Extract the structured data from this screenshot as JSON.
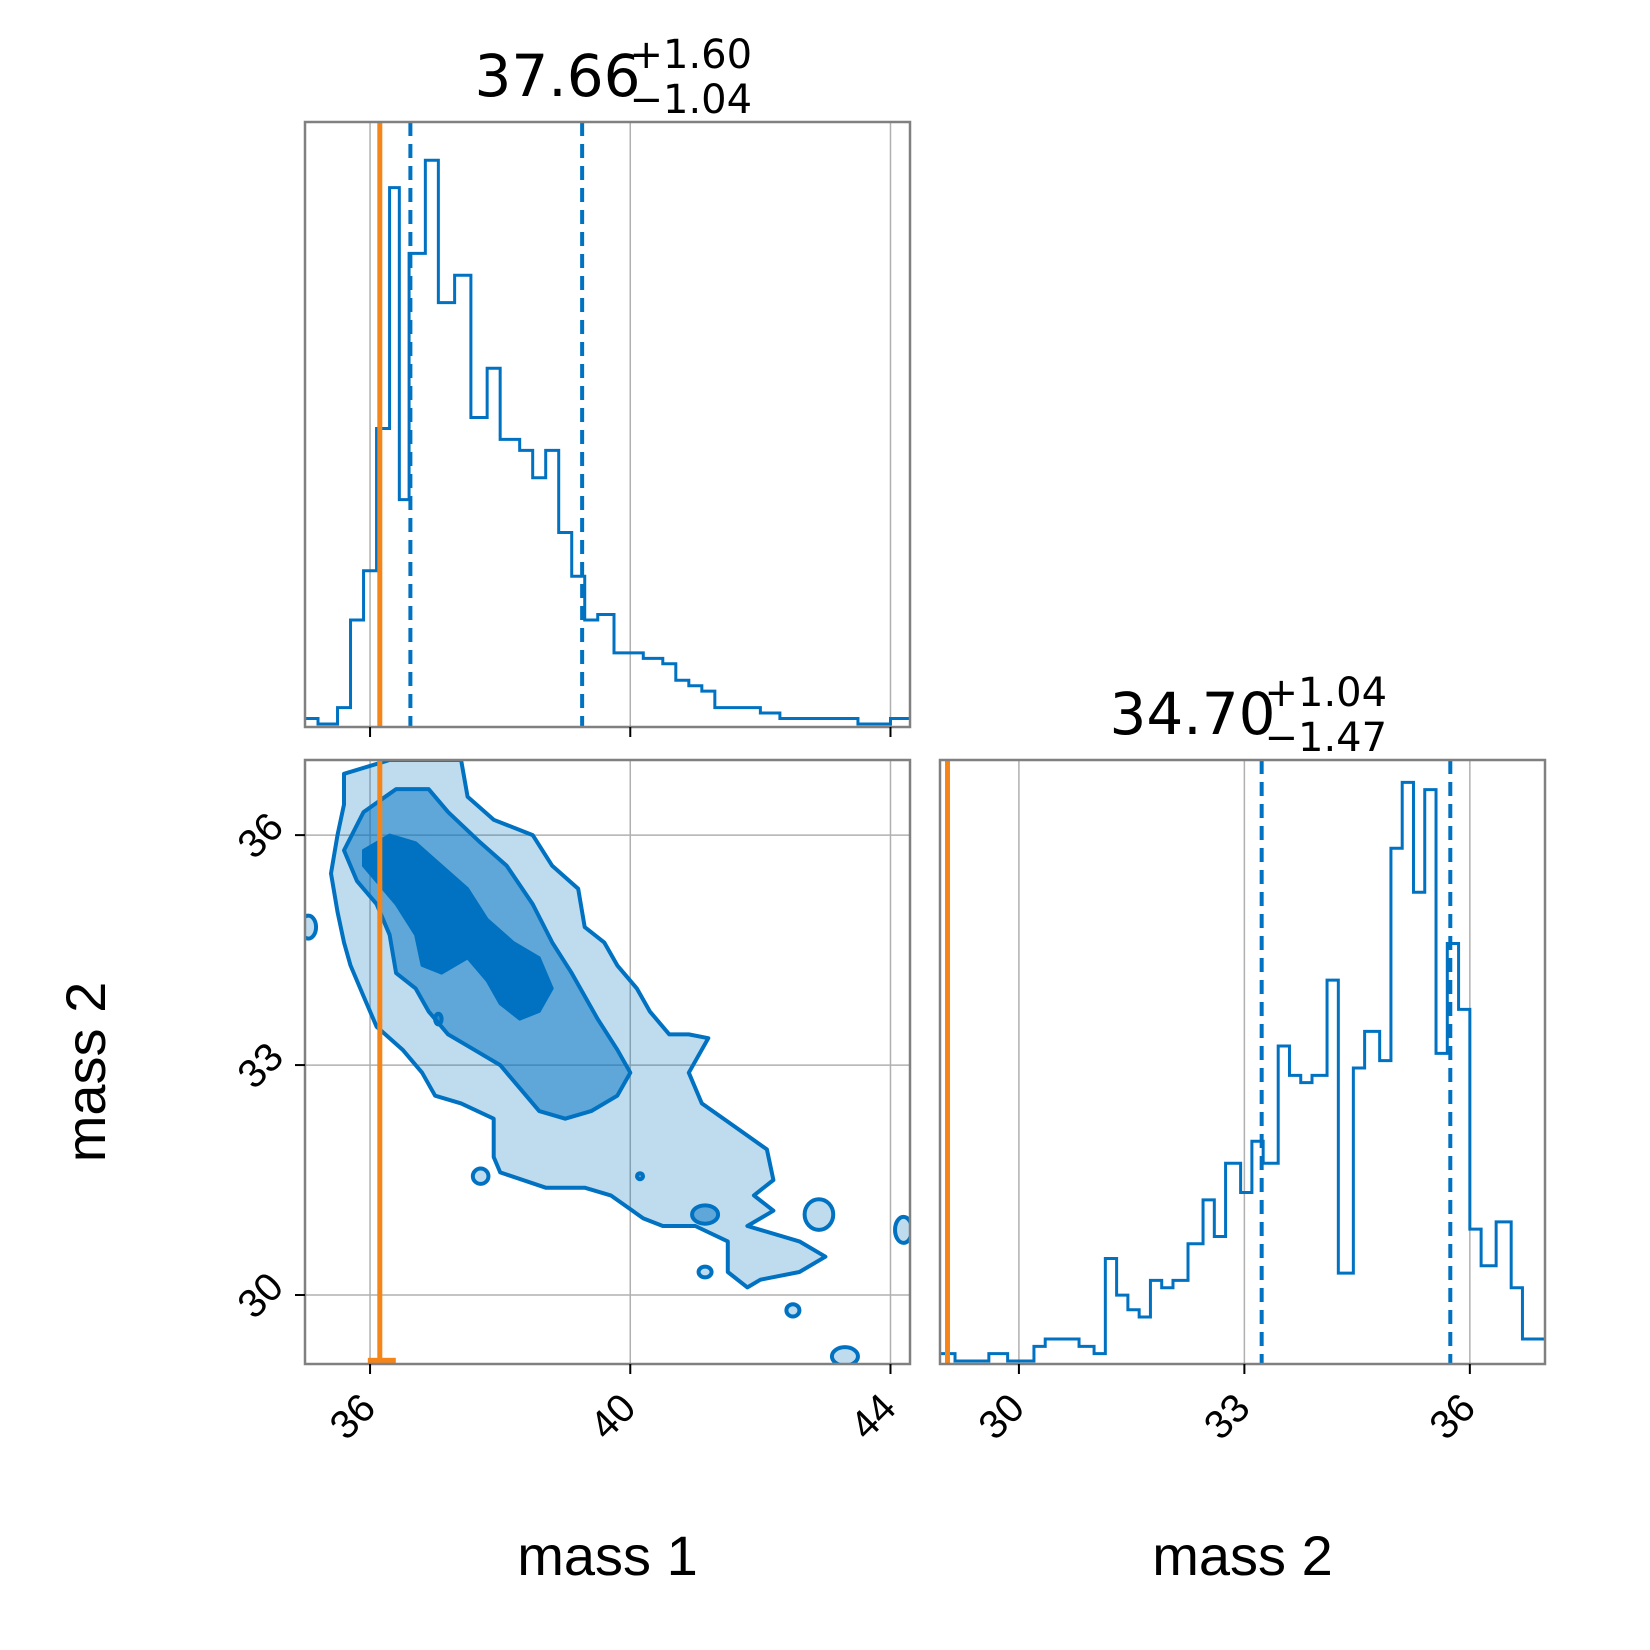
{
  "chart_data": {
    "type": "corner",
    "colors": {
      "posterior": "#0072C1",
      "truth": "#F58518",
      "frame": "#808080",
      "grid": "#b0b0b0"
    },
    "parameters": [
      "mass 1",
      "mass 2"
    ],
    "truth": {
      "mass1": 36.15,
      "mass2": 29.05
    },
    "panels": {
      "mass1_hist": {
        "type": "histogram",
        "title": {
          "median": "37.66",
          "plus": "+1.60",
          "minus": "−1.04"
        },
        "xlim": [
          35.0,
          44.3
        ],
        "ticks": [
          36,
          40,
          44
        ],
        "quantiles": [
          36.62,
          39.26
        ],
        "step_x": [
          35.0,
          35.2,
          35.5,
          35.7,
          35.9,
          36.1,
          36.3,
          36.45,
          36.6,
          36.65,
          36.85,
          37.05,
          37.3,
          37.55,
          37.8,
          38.0,
          38.3,
          38.5,
          38.7,
          38.9,
          39.1,
          39.3,
          39.5,
          39.75,
          39.95,
          40.2,
          40.5,
          40.7,
          40.9,
          41.1,
          41.3,
          41.5,
          41.8,
          42.0,
          42.3,
          42.7,
          43.1,
          43.5,
          44.0,
          44.3
        ],
        "step_y": [
          1,
          0,
          3,
          19,
          28,
          54,
          98,
          41,
          86,
          86,
          103,
          77,
          82,
          56,
          65,
          52,
          50,
          45,
          50,
          35,
          27,
          19,
          20,
          13,
          13,
          12,
          11,
          8,
          7,
          6,
          3,
          3,
          3,
          2,
          1,
          1,
          1,
          0,
          1,
          1
        ]
      },
      "mass2_hist": {
        "type": "histogram",
        "title": {
          "median": "34.70",
          "plus": "+1.04",
          "minus": "−1.47"
        },
        "xlim": [
          28.95,
          37.0
        ],
        "ticks": [
          30,
          33,
          36
        ],
        "quantiles": [
          33.23,
          35.74
        ],
        "step_x": [
          28.95,
          29.15,
          29.6,
          29.85,
          30.2,
          30.35,
          30.55,
          30.8,
          31.0,
          31.15,
          31.3,
          31.45,
          31.6,
          31.75,
          31.9,
          32.05,
          32.25,
          32.45,
          32.6,
          32.75,
          32.95,
          33.1,
          33.25,
          33.45,
          33.6,
          33.75,
          33.9,
          34.1,
          34.25,
          34.45,
          34.6,
          34.8,
          34.95,
          35.1,
          35.25,
          35.4,
          35.55,
          35.7,
          35.85,
          36.0,
          36.15,
          36.35,
          36.55,
          36.7,
          37.0
        ],
        "step_y": [
          1,
          0,
          1,
          0,
          2,
          3,
          3,
          2,
          1,
          14,
          9,
          7,
          6,
          11,
          10,
          11,
          16,
          22,
          17,
          27,
          23,
          30,
          27,
          43,
          39,
          38,
          39,
          52,
          12,
          40,
          45,
          41,
          70,
          79,
          64,
          78,
          42,
          57,
          48,
          18,
          13,
          19,
          10,
          3,
          3
        ]
      },
      "joint": {
        "type": "contour",
        "xlim": [
          35.0,
          44.3
        ],
        "ylim": [
          29.1,
          36.98
        ],
        "xticks": [
          36,
          40,
          44
        ],
        "yticks": [
          30,
          33,
          36
        ],
        "xlabel": "mass 1",
        "ylabel": "mass 2",
        "outer": [
          [
            35.6,
            36.8
          ],
          [
            36.3,
            36.98
          ],
          [
            37.4,
            36.98
          ],
          [
            37.5,
            36.5
          ],
          [
            37.9,
            36.2
          ],
          [
            38.5,
            36.0
          ],
          [
            38.8,
            35.6
          ],
          [
            39.2,
            35.3
          ],
          [
            39.3,
            34.8
          ],
          [
            39.6,
            34.6
          ],
          [
            39.8,
            34.3
          ],
          [
            40.1,
            34.0
          ],
          [
            40.3,
            33.7
          ],
          [
            40.6,
            33.4
          ],
          [
            40.9,
            33.4
          ],
          [
            41.2,
            33.35
          ],
          [
            40.9,
            32.9
          ],
          [
            41.1,
            32.5
          ],
          [
            41.6,
            32.2
          ],
          [
            42.1,
            31.9
          ],
          [
            42.2,
            31.5
          ],
          [
            41.9,
            31.3
          ],
          [
            42.2,
            31.1
          ],
          [
            41.8,
            30.9
          ],
          [
            42.6,
            30.7
          ],
          [
            43.0,
            30.5
          ],
          [
            42.6,
            30.3
          ],
          [
            42.0,
            30.2
          ],
          [
            41.8,
            30.1
          ],
          [
            41.5,
            30.3
          ],
          [
            41.5,
            30.7
          ],
          [
            41.0,
            30.9
          ],
          [
            40.5,
            30.9
          ],
          [
            40.2,
            31.0
          ],
          [
            39.7,
            31.3
          ],
          [
            39.3,
            31.4
          ],
          [
            38.7,
            31.4
          ],
          [
            38.0,
            31.6
          ],
          [
            37.9,
            31.8
          ],
          [
            37.9,
            32.3
          ],
          [
            37.4,
            32.5
          ],
          [
            37.0,
            32.6
          ],
          [
            36.8,
            32.9
          ],
          [
            36.5,
            33.2
          ],
          [
            36.1,
            33.5
          ],
          [
            35.9,
            33.9
          ],
          [
            35.7,
            34.3
          ],
          [
            35.6,
            34.6
          ],
          [
            35.5,
            35.0
          ],
          [
            35.4,
            35.5
          ],
          [
            35.5,
            36.0
          ],
          [
            35.6,
            36.4
          ]
        ],
        "middle": [
          [
            35.6,
            35.8
          ],
          [
            35.9,
            36.3
          ],
          [
            36.4,
            36.6
          ],
          [
            36.9,
            36.6
          ],
          [
            37.2,
            36.3
          ],
          [
            37.7,
            35.9
          ],
          [
            38.1,
            35.6
          ],
          [
            38.5,
            35.1
          ],
          [
            38.8,
            34.6
          ],
          [
            39.1,
            34.2
          ],
          [
            39.5,
            33.6
          ],
          [
            39.8,
            33.2
          ],
          [
            40.0,
            32.9
          ],
          [
            39.8,
            32.6
          ],
          [
            39.4,
            32.4
          ],
          [
            39.0,
            32.3
          ],
          [
            38.6,
            32.4
          ],
          [
            38.3,
            32.7
          ],
          [
            38.0,
            33.0
          ],
          [
            37.6,
            33.2
          ],
          [
            37.2,
            33.4
          ],
          [
            36.9,
            33.7
          ],
          [
            36.7,
            34.0
          ],
          [
            36.4,
            34.2
          ],
          [
            36.3,
            34.7
          ],
          [
            36.1,
            35.1
          ],
          [
            35.8,
            35.4
          ]
        ],
        "inner": [
          [
            35.9,
            35.8
          ],
          [
            36.3,
            36.0
          ],
          [
            36.7,
            35.9
          ],
          [
            37.1,
            35.6
          ],
          [
            37.5,
            35.3
          ],
          [
            37.8,
            34.9
          ],
          [
            38.2,
            34.6
          ],
          [
            38.6,
            34.4
          ],
          [
            38.8,
            34.0
          ],
          [
            38.6,
            33.7
          ],
          [
            38.3,
            33.6
          ],
          [
            38.0,
            33.8
          ],
          [
            37.8,
            34.1
          ],
          [
            37.5,
            34.4
          ],
          [
            37.1,
            34.2
          ],
          [
            36.8,
            34.3
          ],
          [
            36.7,
            34.7
          ],
          [
            36.4,
            35.1
          ],
          [
            36.1,
            35.4
          ],
          [
            35.9,
            35.6
          ]
        ],
        "islands": [
          {
            "x": 35.05,
            "y": 34.8,
            "rx": 0.12,
            "ry": 0.15,
            "shade": "outer"
          },
          {
            "x": 37.05,
            "y": 33.6,
            "rx": 0.05,
            "ry": 0.07,
            "shade": "middle"
          },
          {
            "x": 37.7,
            "y": 31.55,
            "rx": 0.12,
            "ry": 0.1,
            "shade": "outer"
          },
          {
            "x": 40.15,
            "y": 31.55,
            "rx": 0.02,
            "ry": 0.03,
            "shade": "middle"
          },
          {
            "x": 41.15,
            "y": 31.05,
            "rx": 0.2,
            "ry": 0.12,
            "shade": "middle"
          },
          {
            "x": 42.9,
            "y": 31.05,
            "rx": 0.22,
            "ry": 0.2,
            "shade": "outer"
          },
          {
            "x": 44.2,
            "y": 30.85,
            "rx": 0.13,
            "ry": 0.17,
            "shade": "outer"
          },
          {
            "x": 41.15,
            "y": 30.3,
            "rx": 0.1,
            "ry": 0.07,
            "shade": "outer"
          },
          {
            "x": 42.5,
            "y": 29.8,
            "rx": 0.1,
            "ry": 0.08,
            "shade": "outer"
          },
          {
            "x": 43.3,
            "y": 29.2,
            "rx": 0.2,
            "ry": 0.12,
            "shade": "outer"
          }
        ]
      }
    }
  }
}
